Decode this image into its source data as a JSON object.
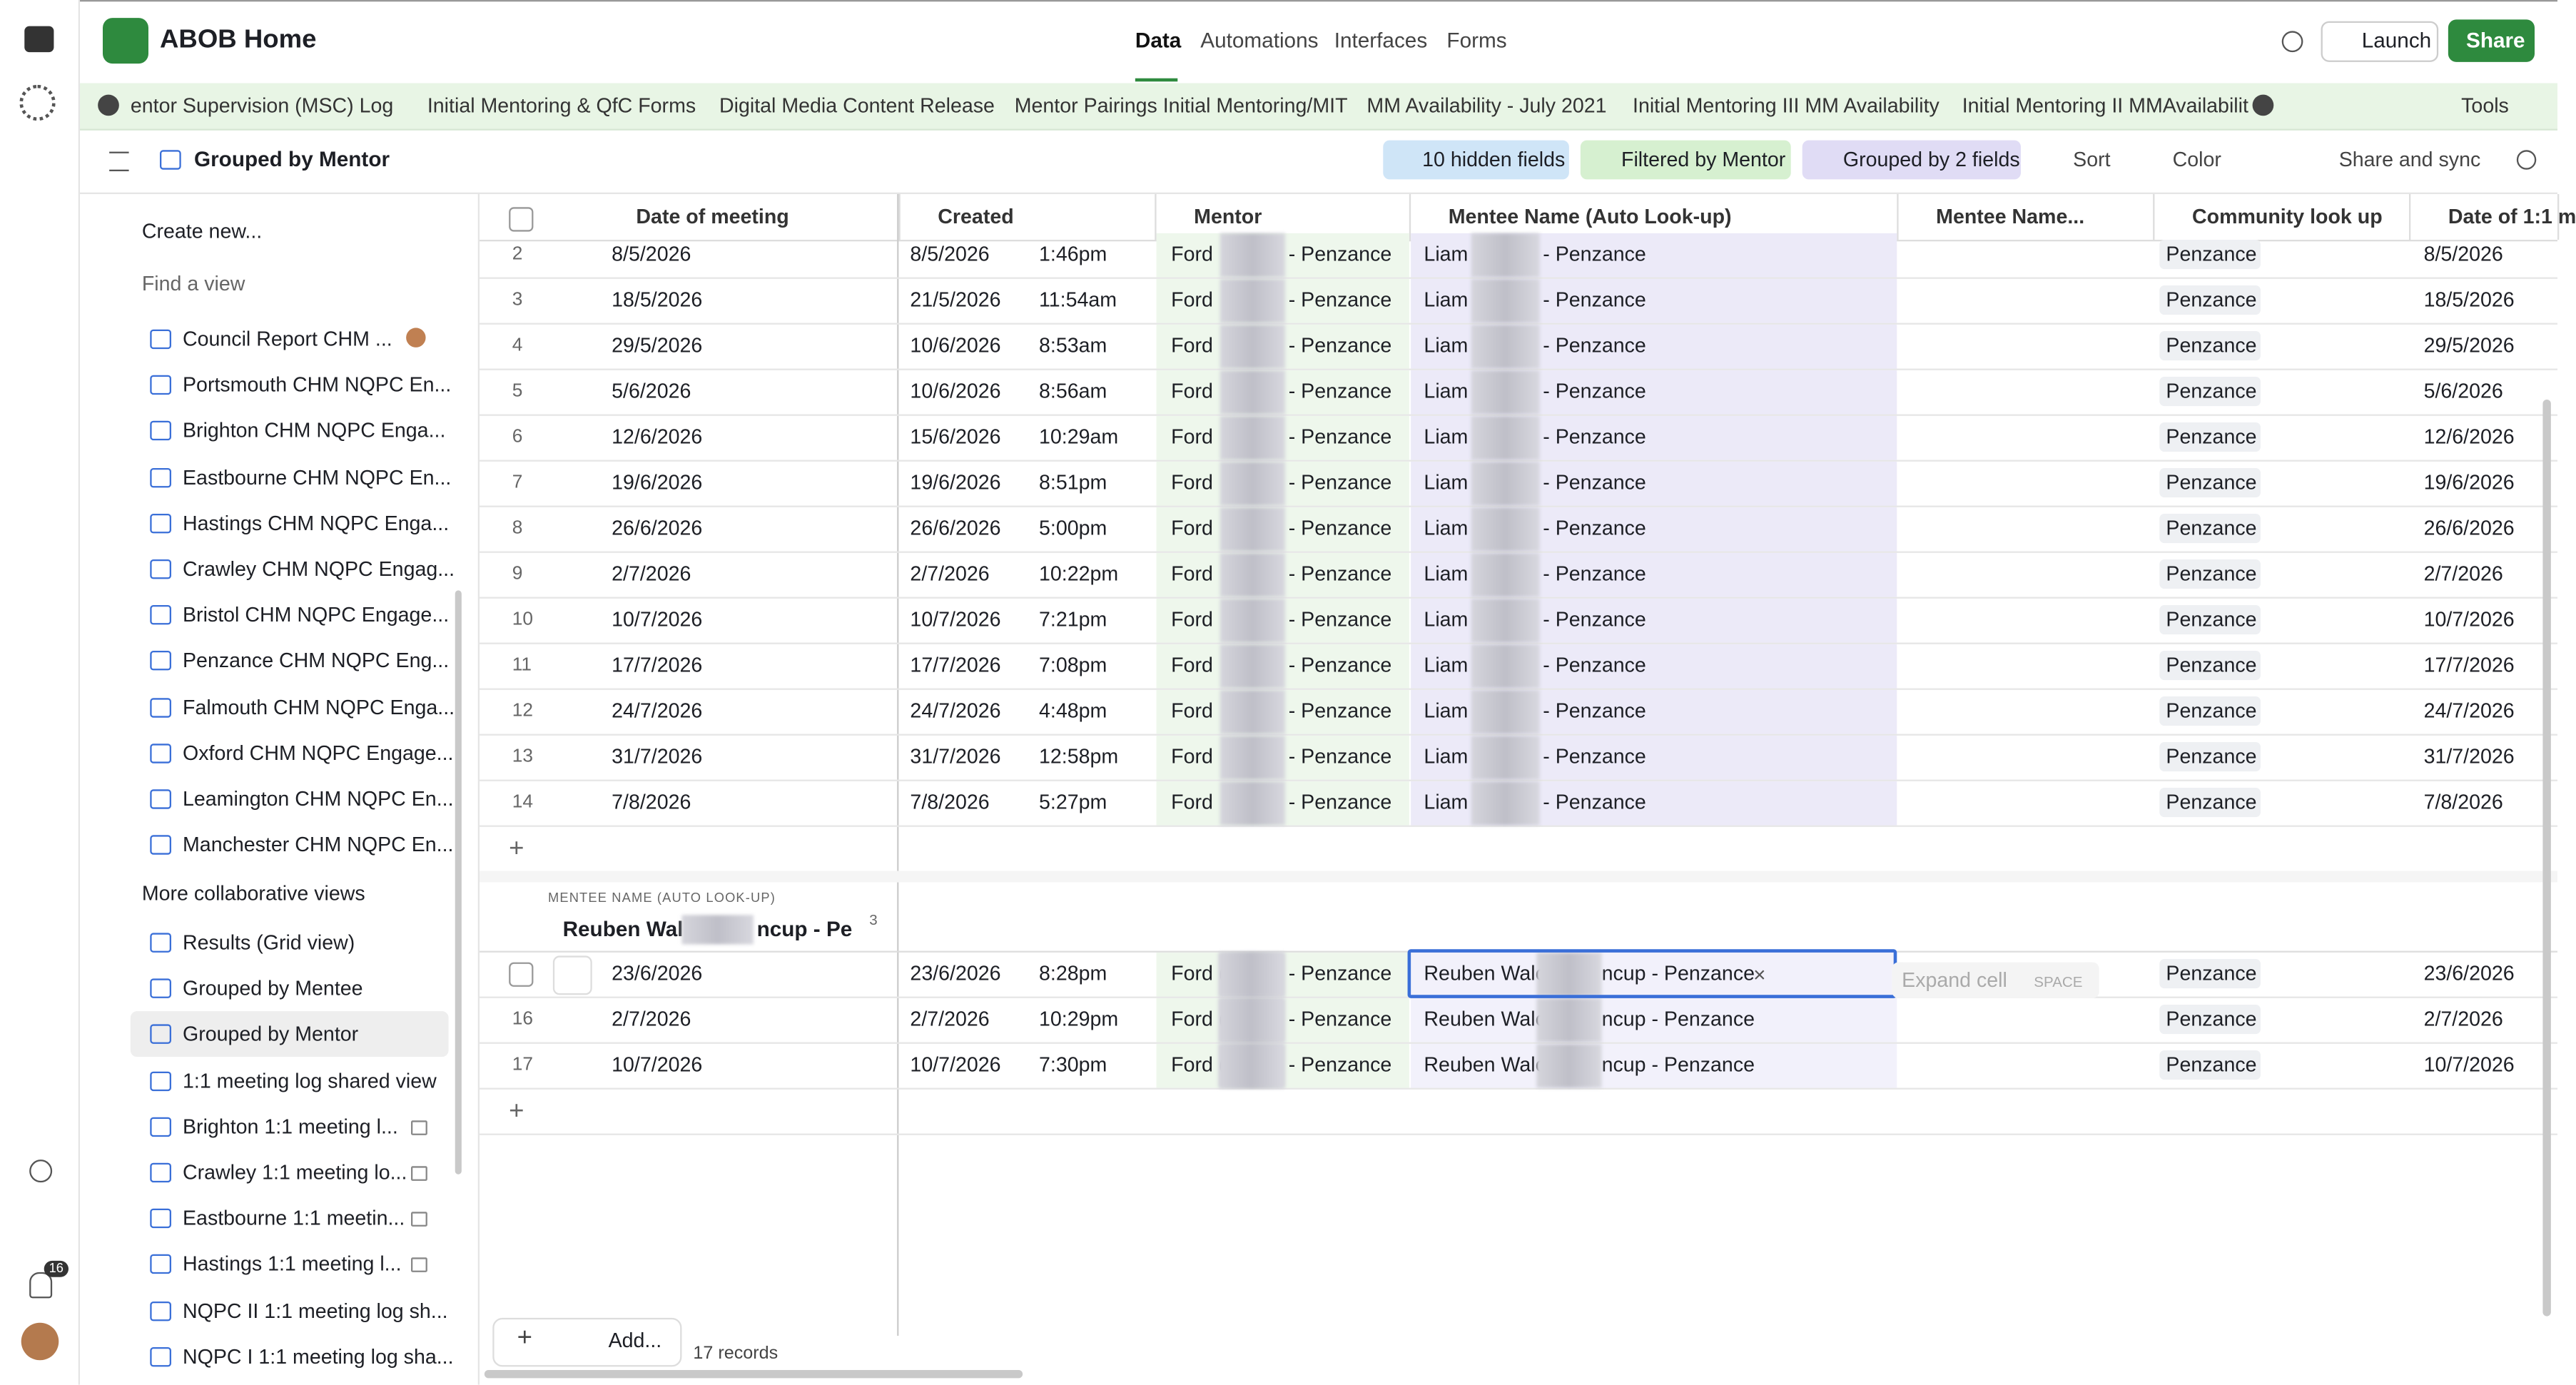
{
  "header": {
    "base_name": "ABOB Home",
    "nav": [
      "Data",
      "Automations",
      "Interfaces",
      "Forms"
    ],
    "launch": "Launch",
    "share": "Share"
  },
  "table_tabs": {
    "tabs": [
      "entor Supervision (MSC) Log",
      "Initial Mentoring & QfC Forms",
      "Digital Media Content Release",
      "Mentor Pairings Initial Mentoring/MIT",
      "MM Availability - July 2021",
      "Initial Mentoring III MM Availability",
      "Initial Mentoring II MMAvailabilit"
    ],
    "tools": "Tools"
  },
  "toolbar": {
    "view_name": "Grouped by Mentor",
    "hidden_fields": "10 hidden fields",
    "filter": "Filtered by Mentor",
    "group": "Grouped by 2 fields",
    "sort": "Sort",
    "color": "Color",
    "share_sync": "Share and sync"
  },
  "sidebar": {
    "create": "Create new...",
    "find": "Find a view",
    "views": [
      "Council Report CHM ...",
      "Portsmouth CHM NQPC En...",
      "Brighton CHM NQPC Enga...",
      "Eastbourne CHM NQPC En...",
      "Hastings CHM NQPC Enga...",
      "Crawley CHM NQPC Engag...",
      "Bristol CHM NQPC Engage...",
      "Penzance CHM NQPC Eng...",
      "Falmouth CHM NQPC Enga...",
      "Oxford CHM NQPC Engage...",
      "Leamington CHM NQPC En...",
      "Manchester CHM NQPC En..."
    ],
    "section": "More collaborative views",
    "collab_views": [
      "Results (Grid view)",
      "Grouped by Mentee",
      "Grouped by Mentor",
      "1:1 meeting log shared view",
      "Brighton 1:1 meeting l...",
      "Crawley 1:1 meeting lo...",
      "Eastbourne 1:1 meetin...",
      "Hastings 1:1 meeting l...",
      "NQPC II 1:1 meeting log sh...",
      "NQPC I 1:1 meeting log sha..."
    ],
    "notifications": "16"
  },
  "grid": {
    "columns": [
      "Date of meeting",
      "Created",
      "Mentor",
      "Mentee Name (Auto Look-up)",
      "Mentee Name...",
      "Community look up",
      "Date of 1:1 m"
    ],
    "group1_rows": [
      [
        "2",
        "8/5/2026",
        "8/5/2026",
        "1:46pm",
        "Ford",
        "- Penzance",
        "Liam",
        "- Penzance",
        "Penzance",
        "8/5/2026"
      ],
      [
        "3",
        "18/5/2026",
        "21/5/2026",
        "11:54am",
        "Ford",
        "- Penzance",
        "Liam",
        "- Penzance",
        "Penzance",
        "18/5/2026"
      ],
      [
        "4",
        "29/5/2026",
        "10/6/2026",
        "8:53am",
        "Ford",
        "- Penzance",
        "Liam",
        "- Penzance",
        "Penzance",
        "29/5/2026"
      ],
      [
        "5",
        "5/6/2026",
        "10/6/2026",
        "8:56am",
        "Ford",
        "- Penzance",
        "Liam",
        "- Penzance",
        "Penzance",
        "5/6/2026"
      ],
      [
        "6",
        "12/6/2026",
        "15/6/2026",
        "10:29am",
        "Ford",
        "- Penzance",
        "Liam",
        "- Penzance",
        "Penzance",
        "12/6/2026"
      ],
      [
        "7",
        "19/6/2026",
        "19/6/2026",
        "8:51pm",
        "Ford",
        "- Penzance",
        "Liam",
        "- Penzance",
        "Penzance",
        "19/6/2026"
      ],
      [
        "8",
        "26/6/2026",
        "26/6/2026",
        "5:00pm",
        "Ford",
        "- Penzance",
        "Liam",
        "- Penzance",
        "Penzance",
        "26/6/2026"
      ],
      [
        "9",
        "2/7/2026",
        "2/7/2026",
        "10:22pm",
        "Ford",
        "- Penzance",
        "Liam",
        "- Penzance",
        "Penzance",
        "2/7/2026"
      ],
      [
        "10",
        "10/7/2026",
        "10/7/2026",
        "7:21pm",
        "Ford",
        "- Penzance",
        "Liam",
        "- Penzance",
        "Penzance",
        "10/7/2026"
      ],
      [
        "11",
        "17/7/2026",
        "17/7/2026",
        "7:08pm",
        "Ford",
        "- Penzance",
        "Liam",
        "- Penzance",
        "Penzance",
        "17/7/2026"
      ],
      [
        "12",
        "24/7/2026",
        "24/7/2026",
        "4:48pm",
        "Ford",
        "- Penzance",
        "Liam",
        "- Penzance",
        "Penzance",
        "24/7/2026"
      ],
      [
        "13",
        "31/7/2026",
        "31/7/2026",
        "12:58pm",
        "Ford",
        "- Penzance",
        "Liam",
        "- Penzance",
        "Penzance",
        "31/7/2026"
      ],
      [
        "14",
        "7/8/2026",
        "7/8/2026",
        "5:27pm",
        "Ford",
        "- Penzance",
        "Liam",
        "- Penzance",
        "Penzance",
        "7/8/2026"
      ]
    ],
    "group2": {
      "label": "MENTEE NAME (AUTO LOOK-UP)",
      "value": "Reuben Wal",
      "value_end": "ncup - Pe",
      "count": "3"
    },
    "group2_rows": [
      [
        null,
        "23/6/2026",
        "23/6/2026",
        "8:28pm",
        "Ford (",
        "- Penzance",
        "Reuben Walc",
        "ncup - Penzance",
        "Penzance",
        "23/6/2026"
      ],
      [
        "16",
        "2/7/2026",
        "2/7/2026",
        "10:29pm",
        "Ford (",
        "- Penzance",
        "Reuben Walc",
        "ncup - Penzance",
        "Penzance",
        "2/7/2026"
      ],
      [
        "17",
        "10/7/2026",
        "10/7/2026",
        "7:30pm",
        "Ford (",
        "- Penzance",
        "Reuben Walc",
        "ncup - Penzance",
        "Penzance",
        "10/7/2026"
      ]
    ],
    "expand_hint": "Expand cell",
    "expand_key": "SPACE",
    "add": "Add...",
    "records": "17 records"
  }
}
